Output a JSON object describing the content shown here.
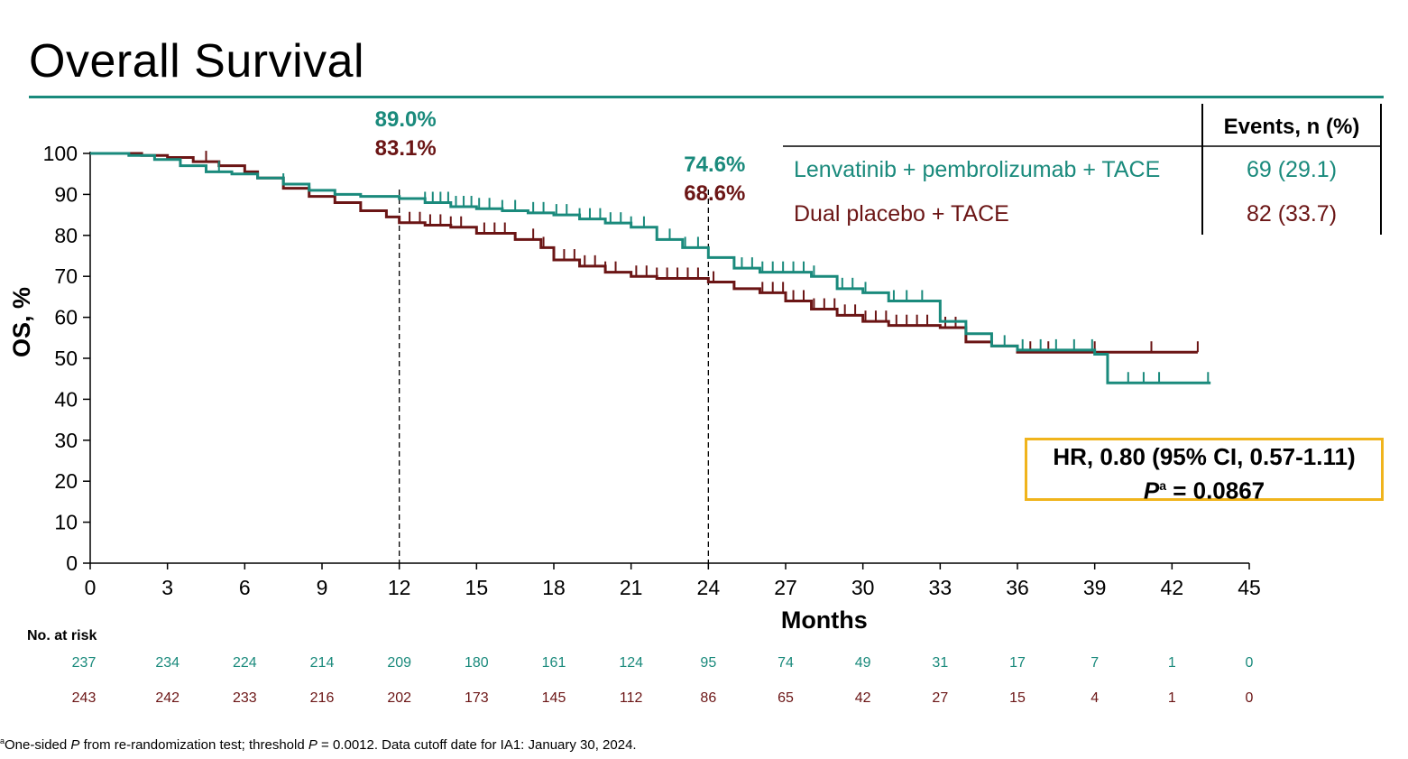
{
  "title": "Overall Survival",
  "footnote": {
    "sup": "a",
    "text_1": "One-sided ",
    "p1": "P",
    "text_2": " from re-randomization test; threshold ",
    "p2": "P",
    "text_3": " = 0.0012. Data cutoff date for IA1: January 30, 2024."
  },
  "hr_box": {
    "line1": "HR, 0.80 (95% CI, 0.57-1.11)",
    "p_label": "P",
    "p_sup": "a",
    "p_value": " = 0.0867"
  },
  "colors": {
    "teal": "#1a8a7c",
    "maroon": "#6b1515",
    "accent_rule": "#1a8a7c",
    "box_border": "#f0b41c"
  },
  "chart_data": {
    "type": "line",
    "title": "",
    "xlabel": "Months",
    "ylabel": "OS, %",
    "xlim": [
      0,
      45
    ],
    "ylim": [
      0,
      100
    ],
    "xticks": [
      0,
      3,
      6,
      9,
      12,
      15,
      18,
      21,
      24,
      27,
      30,
      33,
      36,
      39,
      42,
      45
    ],
    "yticks": [
      0,
      10,
      20,
      30,
      40,
      50,
      60,
      70,
      80,
      90,
      100
    ],
    "grid": false,
    "series": [
      {
        "name": "Lenvatinib + pembrolizumab + TACE",
        "color": "#1a8a7c",
        "x": [
          0,
          1.5,
          2.5,
          3.5,
          4.5,
          5.5,
          6.5,
          7.5,
          8.5,
          9.5,
          10.5,
          12,
          13,
          14,
          15,
          16,
          17,
          18,
          19,
          20,
          21,
          22,
          23,
          24,
          25,
          26,
          28,
          29,
          30,
          31,
          33,
          34,
          35,
          36,
          39,
          39.5,
          43.5
        ],
        "y": [
          100,
          99.5,
          98.5,
          97,
          95.5,
          95,
          94,
          92.5,
          91,
          90,
          89.5,
          89,
          88,
          87,
          86.5,
          86,
          85.5,
          85,
          84,
          83,
          82,
          79,
          77,
          74.6,
          72,
          71,
          70,
          67,
          66,
          64,
          59,
          56,
          53,
          52,
          51,
          44,
          44
        ],
        "censor_x": [
          5,
          7.5,
          13,
          13.3,
          13.6,
          13.9,
          14.2,
          14.5,
          14.8,
          15.1,
          15.5,
          16,
          16.5,
          17.2,
          17.6,
          18.1,
          18.5,
          19,
          19.4,
          19.8,
          20.2,
          20.6,
          21,
          21.5,
          22.5,
          23.1,
          23.6,
          25.3,
          25.7,
          26.1,
          26.5,
          26.9,
          27.3,
          27.7,
          28.1,
          29.2,
          29.6,
          30.1,
          31.2,
          31.7,
          32.3,
          35.5,
          36.2,
          36.9,
          37.5,
          38.2,
          38.9,
          40.3,
          40.9,
          41.5,
          43.4
        ],
        "at_risk": [
          237,
          234,
          224,
          214,
          209,
          180,
          161,
          124,
          95,
          74,
          49,
          31,
          17,
          7,
          1,
          0
        ],
        "events": "69 (29.1)"
      },
      {
        "name": "Dual placebo + TACE",
        "color": "#6b1515",
        "x": [
          0,
          2,
          3,
          4,
          5,
          6,
          6.5,
          7.5,
          8.5,
          9.5,
          10.5,
          11.5,
          12,
          13,
          14,
          15,
          16.5,
          17.5,
          18,
          19,
          20,
          21,
          22,
          24,
          25,
          26,
          27,
          28,
          29,
          30,
          31,
          33,
          34,
          35,
          36,
          39,
          43
        ],
        "y": [
          100,
          99.5,
          99,
          98,
          97,
          95.5,
          94,
          91.5,
          89.5,
          88,
          86,
          84.5,
          83.1,
          82.5,
          82,
          80.5,
          79,
          77,
          74,
          72.5,
          71,
          70,
          69.5,
          68.6,
          67,
          66,
          64,
          62,
          60.5,
          59,
          58,
          57.5,
          54,
          53,
          51.5,
          51.5,
          51.5
        ],
        "censor_x": [
          4.5,
          12.4,
          12.8,
          13.2,
          13.6,
          14.0,
          14.4,
          15.3,
          15.7,
          16.1,
          17.2,
          17.6,
          18.4,
          18.8,
          19.2,
          19.6,
          20.0,
          20.4,
          21.2,
          21.6,
          22.0,
          22.4,
          22.8,
          23.2,
          23.6,
          24.2,
          26.1,
          26.5,
          26.9,
          27.3,
          27.7,
          28.1,
          28.5,
          28.9,
          29.3,
          29.7,
          30.1,
          30.5,
          30.9,
          31.3,
          31.7,
          32.1,
          32.5,
          33.2,
          33.6,
          34.0,
          36.5,
          37.2,
          39.0,
          41.2,
          43.0
        ],
        "at_risk": [
          243,
          242,
          233,
          216,
          202,
          173,
          145,
          112,
          86,
          65,
          42,
          27,
          15,
          4,
          1,
          0
        ],
        "events": "82 (33.7)"
      }
    ],
    "landmarks": [
      {
        "x": 12,
        "labels": [
          "89.0%",
          "83.1%"
        ]
      },
      {
        "x": 24,
        "labels": [
          "74.6%",
          "68.6%"
        ]
      }
    ],
    "events_table": {
      "header": "Events, n (%)"
    },
    "at_risk_label": "No. at risk"
  }
}
